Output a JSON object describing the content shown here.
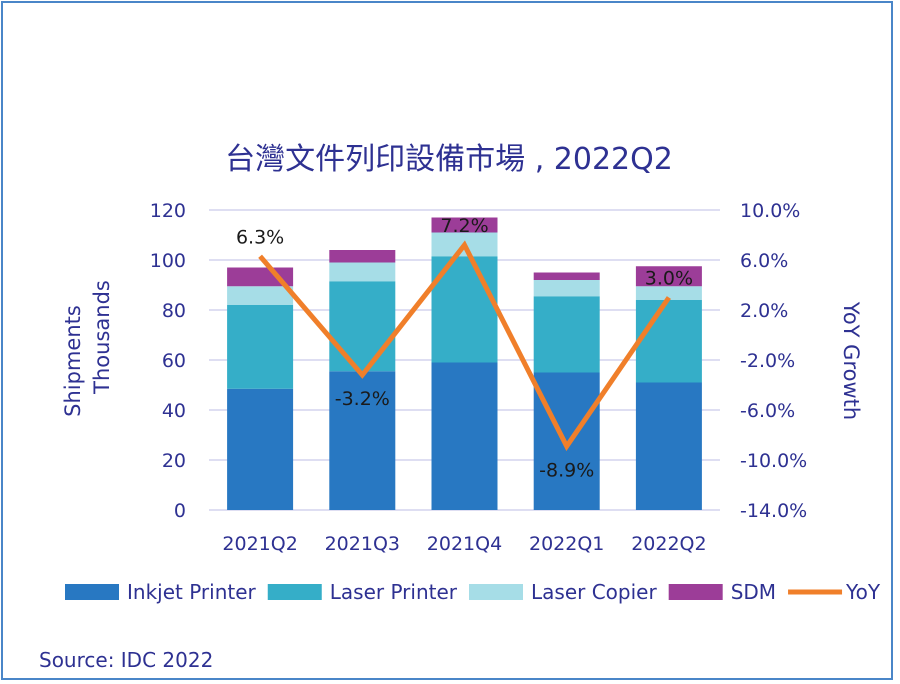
{
  "source_text": "Source: IDC 2022",
  "chart_data": {
    "type": "bar",
    "stacked": true,
    "title": "台灣文件列印設備市場 , 2022Q2",
    "categories": [
      "2021Q2",
      "2021Q3",
      "2021Q4",
      "2022Q1",
      "2022Q2"
    ],
    "ylabel_lines": [
      "Shipments",
      "Thousands"
    ],
    "y2label": "YoY Growth",
    "ylim": [
      0,
      120
    ],
    "yticks": [
      "0",
      "20",
      "40",
      "60",
      "80",
      "100",
      "120"
    ],
    "y2lim": [
      -14,
      10
    ],
    "y2ticks": [
      "-14.0%",
      "-10.0%",
      "-6.0%",
      "-2.0%",
      "2.0%",
      "6.0%",
      "10.0%"
    ],
    "grid": true,
    "legend_position": "bottom",
    "series": [
      {
        "name": "Inkjet Printer",
        "color": "#2878c2",
        "values": [
          48.5,
          55.5,
          59,
          55,
          51
        ]
      },
      {
        "name": "Laser Printer",
        "color": "#35aec8",
        "values": [
          33.5,
          36,
          42.5,
          30.5,
          33
        ]
      },
      {
        "name": "Laser Copier",
        "color": "#a6dde7",
        "values": [
          7.5,
          7.5,
          9.5,
          6.5,
          5.5
        ]
      },
      {
        "name": "SDM",
        "color": "#9c3d98",
        "values": [
          7.5,
          5,
          6,
          3,
          8
        ]
      }
    ],
    "line": {
      "name": "YoY",
      "color": "#f07f2a",
      "axis": "right",
      "values": [
        6.3,
        -3.2,
        7.2,
        -8.9,
        3.0
      ],
      "labels": [
        "6.3%",
        "-3.2%",
        "7.2%",
        "-8.9%",
        "3.0%"
      ]
    }
  }
}
